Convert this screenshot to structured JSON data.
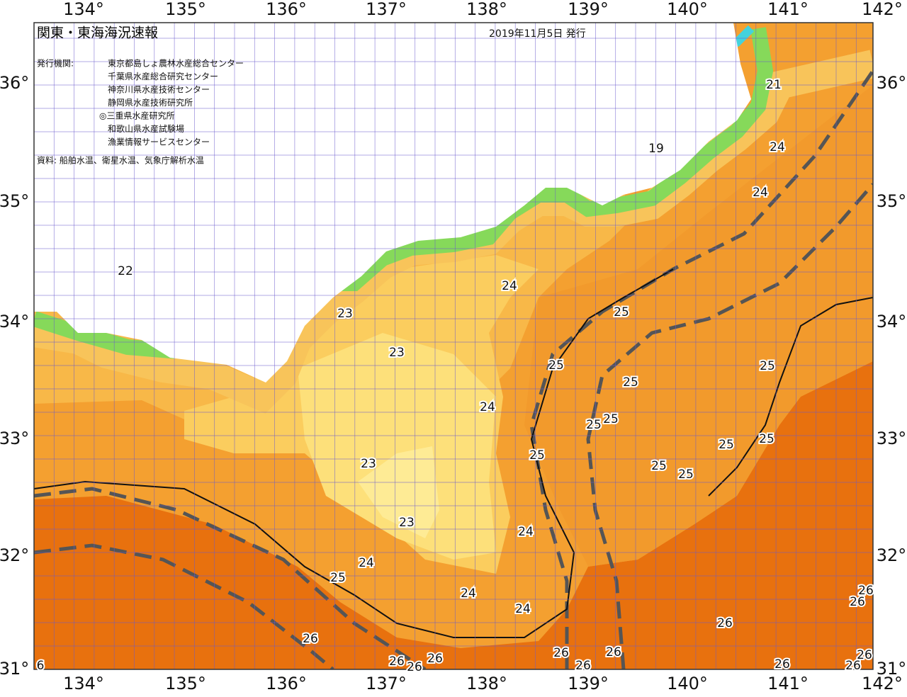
{
  "header": {
    "title": "関東・東海海況速報",
    "date": "2019年11月5日 発行"
  },
  "publishers": {
    "label": "発行機関:",
    "items": [
      "東京都島しょ農林水産総合センター",
      "千葉県水産総合研究センター",
      "神奈川県水産技術センター",
      "静岡県水産技術研究所",
      "◎三重県水産研究所",
      "和歌山県水産試験場",
      "漁業情報サービスセンター"
    ]
  },
  "source": "資料: 船舶水温、衛星水温、気象庁解析水温",
  "map": {
    "lon_labels": [
      "134°",
      "135°",
      "136°",
      "137°",
      "138°",
      "139°",
      "140°",
      "141°",
      "142°"
    ],
    "lat_labels": [
      "36°",
      "35°",
      "34°",
      "33°",
      "32°",
      "31°"
    ],
    "contour_labels": [
      "21",
      "24",
      "24",
      "19",
      "22",
      "24",
      "23",
      "25",
      "23",
      "25",
      "25",
      "25",
      "24",
      "25",
      "25",
      "25",
      "25",
      "25",
      "23",
      "25",
      "25",
      "23",
      "24",
      "24",
      "25",
      "24",
      "24",
      "26",
      "26",
      "26",
      "26",
      "26",
      "26",
      "26",
      "26",
      "26",
      "26",
      "26",
      "26",
      "26",
      "6"
    ]
  }
}
